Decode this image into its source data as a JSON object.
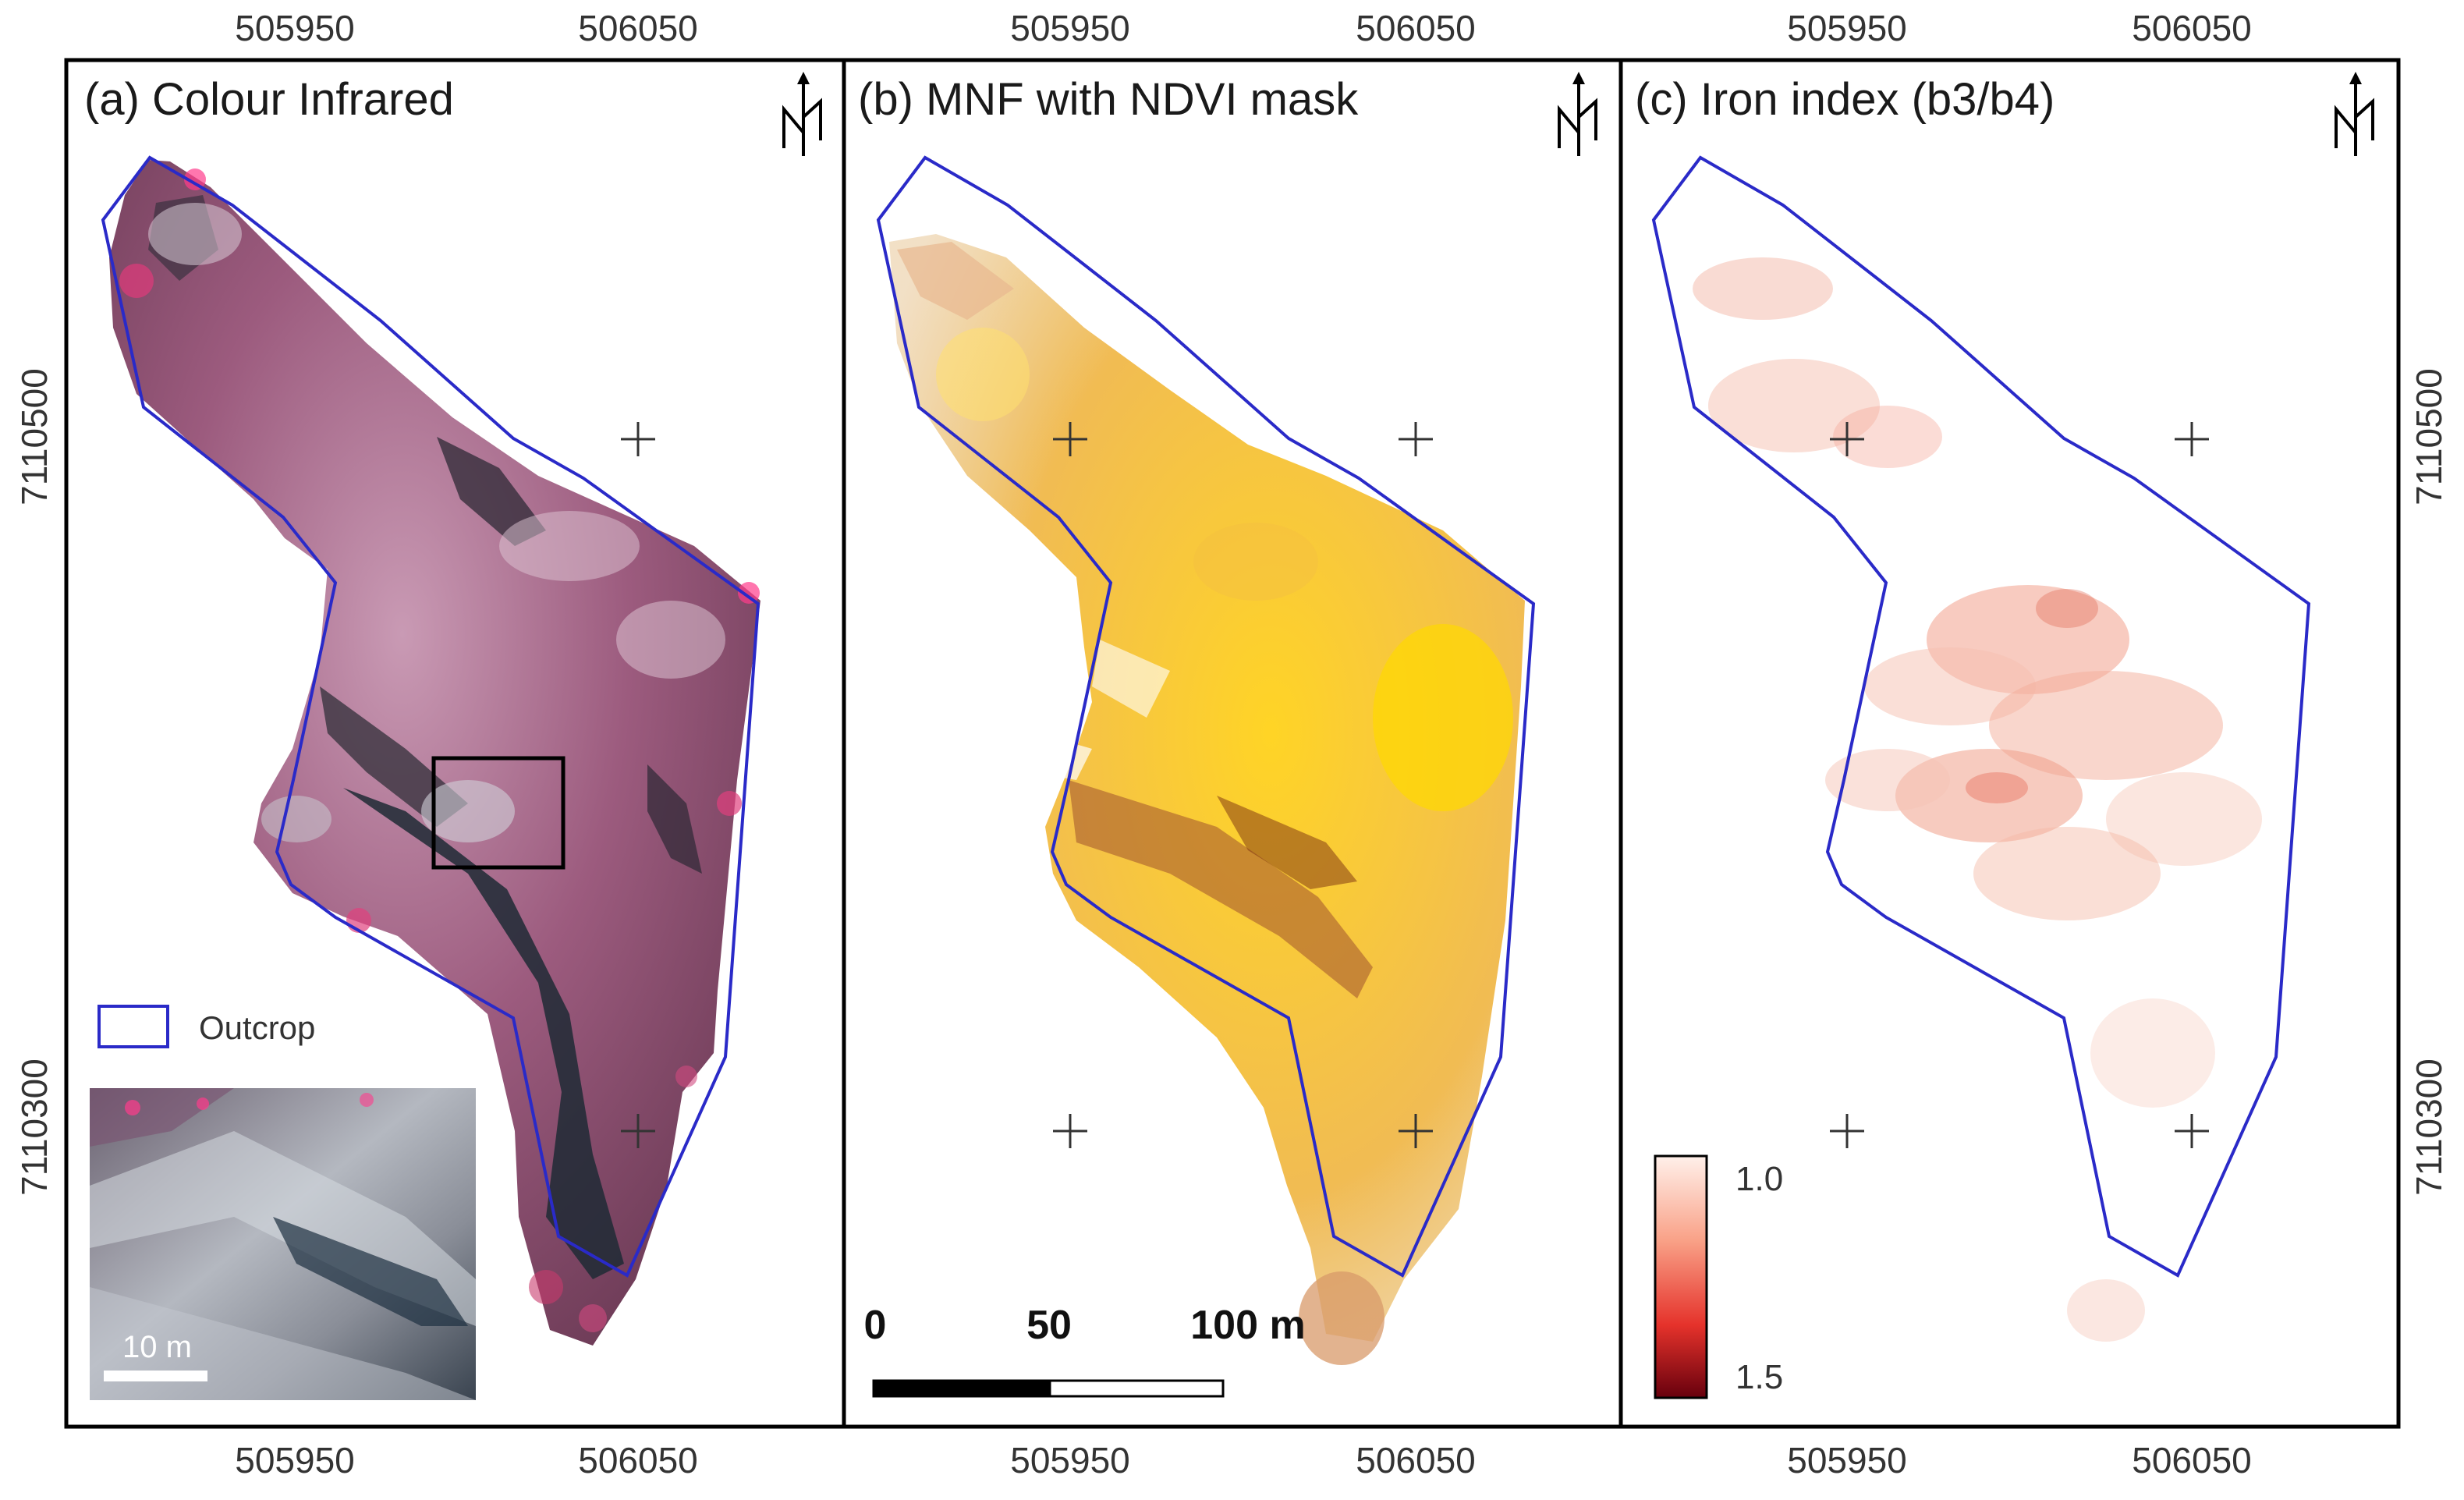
{
  "figure": {
    "top_ticks": [
      "505950",
      "506050"
    ],
    "bottom_ticks": [
      "505950",
      "506050"
    ],
    "left_ticks": [
      "7110500",
      "7110300"
    ],
    "right_ticks": [
      "7110500",
      "7110300"
    ]
  },
  "panels": [
    {
      "title": "(a) Colour Infrared"
    },
    {
      "title": "(b) MNF with NDVI mask"
    },
    {
      "title": "(c) Iron index (b3/b4)"
    }
  ],
  "north_label": "N",
  "legend": {
    "outcrop_label": "Outcrop"
  },
  "inset": {
    "scale_label": "10 m"
  },
  "scalebar": {
    "labels": [
      "0",
      "50",
      "100 m"
    ]
  },
  "colorbar": {
    "top_label": "1.0",
    "bottom_label": "1.5",
    "min": 1.0,
    "max": 1.5
  },
  "colors": {
    "outline": "#2a2ac8",
    "frame": "#000000",
    "cir_base": "#8a5a78",
    "mnf_yellow": "#ffd700",
    "iron_red": "#e03020"
  }
}
